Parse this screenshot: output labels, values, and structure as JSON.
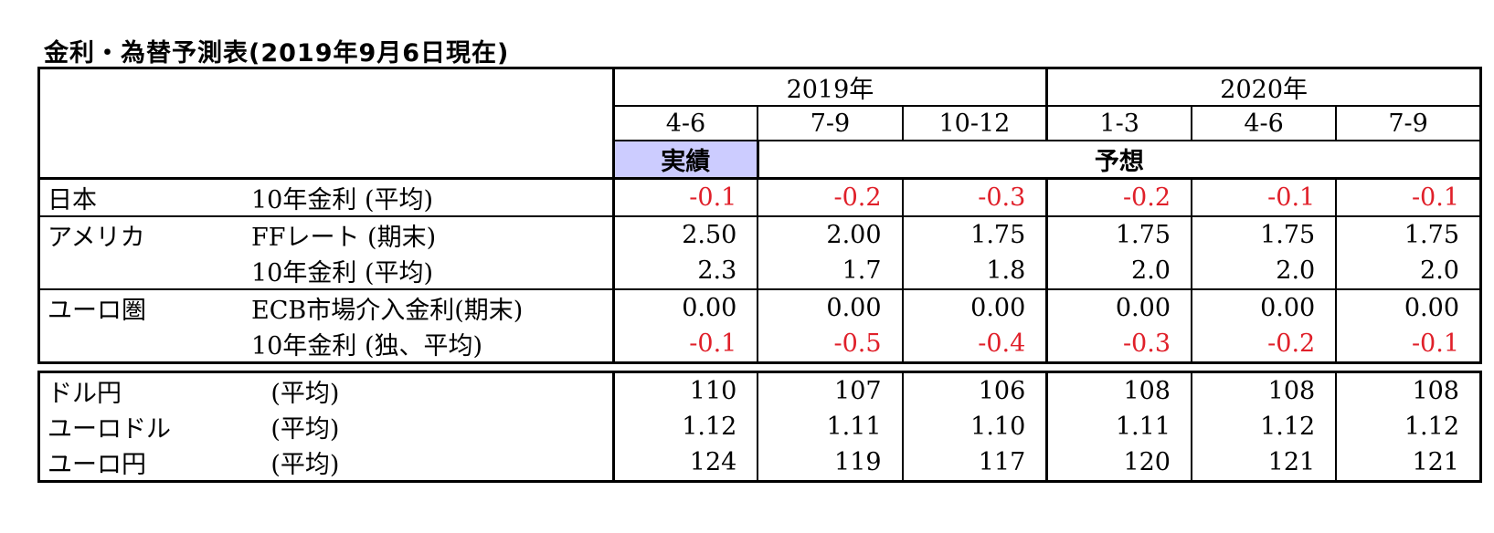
{
  "title": "金利・為替予測表(2019年9月6日現在)",
  "header": {
    "years": [
      "2019年",
      "2020年"
    ],
    "quarters": [
      "4-6",
      "7-9",
      "10-12",
      "1-3",
      "4-6",
      "7-9"
    ],
    "actual_label": "実績",
    "forecast_label": "予想"
  },
  "rates": [
    {
      "region": "日本",
      "item": "10年金利 (平均)",
      "values": [
        "-0.1",
        "-0.2",
        "-0.3",
        "-0.2",
        "-0.1",
        "-0.1"
      ]
    },
    {
      "region": "アメリカ",
      "item": "FFレート (期末)",
      "values": [
        "2.50",
        "2.00",
        "1.75",
        "1.75",
        "1.75",
        "1.75"
      ]
    },
    {
      "region": "",
      "item": "10年金利 (平均)",
      "values": [
        "2.3",
        "1.7",
        "1.8",
        "2.0",
        "2.0",
        "2.0"
      ]
    },
    {
      "region": "ユーロ圏",
      "item": "ECB市場介入金利(期末)",
      "values": [
        "0.00",
        "0.00",
        "0.00",
        "0.00",
        "0.00",
        "0.00"
      ]
    },
    {
      "region": "",
      "item": "10年金利 (独、平均)",
      "values": [
        "-0.1",
        "-0.5",
        "-0.4",
        "-0.3",
        "-0.2",
        "-0.1"
      ]
    }
  ],
  "fx": [
    {
      "pair": "ドル円",
      "item": "(平均)",
      "values": [
        "110",
        "107",
        "106",
        "108",
        "108",
        "108"
      ]
    },
    {
      "pair": "ユーロドル",
      "item": "(平均)",
      "values": [
        "1.12",
        "1.11",
        "1.10",
        "1.11",
        "1.12",
        "1.12"
      ]
    },
    {
      "pair": "ユーロ円",
      "item": "(平均)",
      "values": [
        "124",
        "119",
        "117",
        "120",
        "121",
        "121"
      ]
    }
  ],
  "colors": {
    "negative": "#e0202a",
    "actual_bg": "#ccccff"
  }
}
